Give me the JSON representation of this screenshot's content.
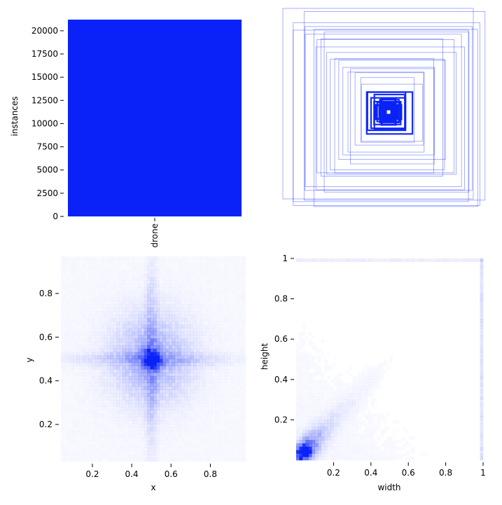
{
  "colors": {
    "primary": "#0a22f8",
    "background": "#ffffff",
    "tick": "#000000"
  },
  "chart_data": [
    {
      "type": "bar",
      "panel": "class-counts",
      "categories": [
        "drone"
      ],
      "values": [
        21200
      ],
      "ylabel": "instances",
      "xlabel": "",
      "ylim": [
        0,
        21200
      ],
      "yticks": [
        0,
        2500,
        5000,
        7500,
        10000,
        12500,
        15000,
        17500,
        20000
      ],
      "grid": false
    },
    {
      "type": "box-overlay",
      "panel": "label-boxes",
      "description_shown": false,
      "box_sizes": [
        [
          1.0,
          1.0
        ],
        [
          0.98,
          0.96
        ],
        [
          0.95,
          0.99
        ],
        [
          0.92,
          0.9
        ],
        [
          0.88,
          0.86
        ],
        [
          0.86,
          0.93
        ],
        [
          0.82,
          0.8
        ],
        [
          0.78,
          0.75
        ],
        [
          0.76,
          0.84
        ],
        [
          0.72,
          0.7
        ],
        [
          0.68,
          0.64
        ],
        [
          0.64,
          0.72
        ],
        [
          0.6,
          0.58
        ],
        [
          0.56,
          0.52
        ],
        [
          0.52,
          0.6
        ],
        [
          0.48,
          0.46
        ],
        [
          0.44,
          0.5
        ],
        [
          0.4,
          0.42
        ],
        [
          0.36,
          0.38
        ],
        [
          0.32,
          0.3
        ],
        [
          0.28,
          0.34
        ],
        [
          0.24,
          0.22
        ],
        [
          0.2,
          0.2
        ],
        [
          0.18,
          0.16
        ],
        [
          0.16,
          0.18
        ],
        [
          0.14,
          0.12
        ],
        [
          0.12,
          0.1
        ],
        [
          0.1,
          0.12
        ],
        [
          0.08,
          0.08
        ],
        [
          0.06,
          0.06
        ]
      ]
    },
    {
      "type": "heatmap",
      "panel": "xy-density",
      "xlabel": "x",
      "ylabel": "y",
      "xlim": [
        0.04,
        0.98
      ],
      "ylim": [
        0.03,
        0.97
      ],
      "xticks": [
        0.2,
        0.4,
        0.6,
        0.8
      ],
      "yticks": [
        0.2,
        0.4,
        0.6,
        0.8
      ],
      "peak": [
        0.5,
        0.5
      ]
    },
    {
      "type": "heatmap",
      "panel": "width-height-density",
      "xlabel": "width",
      "ylabel": "height",
      "xlim": [
        0.0,
        1.0
      ],
      "ylim": [
        0.0,
        1.0
      ],
      "xticks": [
        0.2,
        0.4,
        0.6,
        0.8,
        1.0
      ],
      "yticks": [
        0.2,
        0.4,
        0.6,
        0.8,
        1.0
      ],
      "peak": [
        0.05,
        0.05
      ]
    }
  ]
}
